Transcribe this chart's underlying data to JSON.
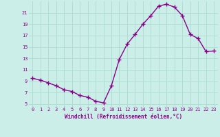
{
  "x": [
    0,
    1,
    2,
    3,
    4,
    5,
    6,
    7,
    8,
    9,
    10,
    11,
    12,
    13,
    14,
    15,
    16,
    17,
    18,
    19,
    20,
    21,
    22,
    23
  ],
  "y": [
    9.5,
    9.2,
    8.7,
    8.2,
    7.5,
    7.2,
    6.5,
    6.2,
    5.5,
    5.2,
    8.2,
    12.8,
    15.5,
    17.2,
    19.0,
    20.5,
    22.2,
    22.5,
    22.0,
    20.5,
    17.2,
    16.5,
    14.2,
    14.3
  ],
  "line_color": "#880088",
  "marker": "+",
  "marker_size": 4,
  "marker_lw": 1.0,
  "bg_color": "#cceee8",
  "grid_color": "#aaddcc",
  "xlabel": "Windchill (Refroidissement éolien,°C)",
  "xlabel_color": "#880088",
  "tick_color": "#880088",
  "ylim": [
    4.5,
    23.0
  ],
  "xlim": [
    -0.5,
    23.5
  ],
  "yticks": [
    5,
    7,
    9,
    11,
    13,
    15,
    17,
    19,
    21
  ],
  "xticks": [
    0,
    1,
    2,
    3,
    4,
    5,
    6,
    7,
    8,
    9,
    10,
    11,
    12,
    13,
    14,
    15,
    16,
    17,
    18,
    19,
    20,
    21,
    22,
    23
  ],
  "linewidth": 1.0,
  "tick_fontsize": 5.0,
  "xlabel_fontsize": 5.5
}
